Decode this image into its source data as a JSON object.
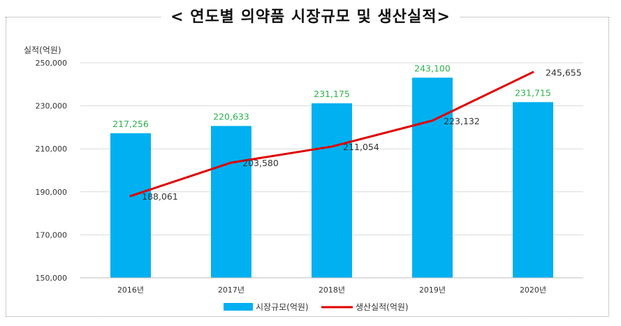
{
  "title": "< 연도별 의약품 시장규모 및 생산실적>",
  "chart_data": {
    "type": "bar",
    "categories": [
      "2016년",
      "2017년",
      "2018년",
      "2019년",
      "2020년"
    ],
    "series": [
      {
        "name": "시장규모(억원)",
        "type": "bar",
        "values": [
          217256,
          220633,
          231175,
          243100,
          231715
        ],
        "color": "#00b0f0",
        "label_color": "#2bb24c"
      },
      {
        "name": "생산실적(억원)",
        "type": "line",
        "values": [
          188061,
          203580,
          211054,
          223132,
          245655
        ],
        "color": "#e00000",
        "label_color": "#333333"
      }
    ],
    "bar_labels": [
      "217,256",
      "220,633",
      "231,175",
      "243,100",
      "231,715"
    ],
    "line_labels": [
      "188,061",
      "203,580",
      "211,054",
      "223,132",
      "245,655"
    ],
    "ylabel": "실적(억원)",
    "ylim": [
      150000,
      250000
    ],
    "yticks": [
      "150,000",
      "170,000",
      "190,000",
      "210,000",
      "230,000",
      "250,000"
    ],
    "grid": true,
    "legend_position": "bottom"
  }
}
